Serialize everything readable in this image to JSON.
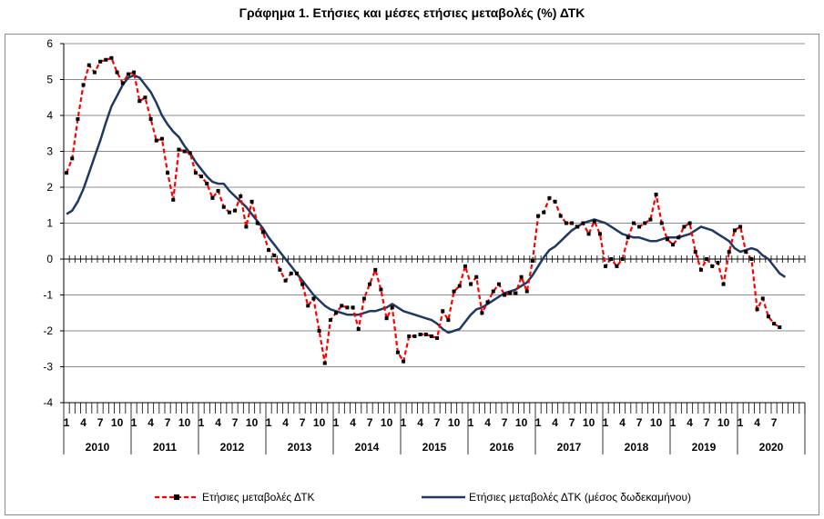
{
  "title": "Γράφημα 1. Ετήσιες και μέσες ετήσιες μεταβολές (%) ΔΤΚ",
  "colors": {
    "annual": "#ff0000",
    "annual_marker": "#000000",
    "average": "#1f3864",
    "grid": "#8c8c8c",
    "axis": "#000000"
  },
  "chart_data": {
    "type": "line",
    "title": "Γράφημα 1. Ετήσιες και μέσες ετήσιες μεταβολές (%) ΔΤΚ",
    "ylim": [
      -4,
      6
    ],
    "yticks": [
      "-4",
      "-3",
      "-2",
      "-1",
      "0",
      "1",
      "2",
      "3",
      "4",
      "5",
      "6"
    ],
    "grid": "horizontal",
    "legend_position": "bottom",
    "x_month_labels": [
      "1",
      "4",
      "7",
      "10"
    ],
    "years": [
      "2010",
      "2011",
      "2012",
      "2013",
      "2014",
      "2015",
      "2016",
      "2017",
      "2018",
      "2019",
      "2020"
    ],
    "x_range": "2010-01 to 2020-08 (monthly)",
    "series": [
      {
        "name": "Ετήσιες μεταβολές ΔΤΚ",
        "style": "dashed-with-markers",
        "values": [
          2.4,
          2.8,
          3.9,
          4.85,
          5.4,
          5.2,
          5.5,
          5.55,
          5.6,
          5.2,
          4.9,
          5.15,
          5.2,
          4.4,
          4.5,
          3.9,
          3.3,
          3.35,
          2.4,
          1.65,
          3.05,
          3.0,
          2.95,
          2.4,
          2.3,
          2.1,
          1.7,
          1.9,
          1.45,
          1.3,
          1.35,
          1.75,
          0.9,
          1.6,
          1.0,
          0.75,
          0.25,
          0.1,
          -0.3,
          -0.6,
          -0.4,
          -0.4,
          -0.7,
          -1.3,
          -1.1,
          -2.0,
          -2.9,
          -1.7,
          -1.5,
          -1.3,
          -1.35,
          -1.35,
          -1.95,
          -1.1,
          -0.7,
          -0.3,
          -0.85,
          -1.65,
          -1.35,
          -2.6,
          -2.85,
          -2.15,
          -2.15,
          -2.1,
          -2.1,
          -2.15,
          -2.2,
          -1.45,
          -1.7,
          -0.9,
          -0.75,
          -0.2,
          -0.7,
          -0.5,
          -1.5,
          -1.2,
          -0.9,
          -0.7,
          -1.0,
          -0.95,
          -0.95,
          -0.5,
          -0.9,
          -0.05,
          1.2,
          1.3,
          1.7,
          1.6,
          1.2,
          1.0,
          1.0,
          0.9,
          1.0,
          0.7,
          1.05,
          0.7,
          -0.2,
          0.0,
          -0.2,
          0.0,
          0.6,
          1.0,
          0.9,
          1.0,
          1.1,
          1.8,
          1.0,
          0.55,
          0.4,
          0.6,
          0.9,
          1.0,
          0.2,
          -0.3,
          0.0,
          -0.2,
          -0.1,
          -0.7,
          0.2,
          0.8,
          0.9,
          0.2,
          0.0,
          -1.4,
          -1.1,
          -1.6,
          -1.8,
          -1.9
        ]
      },
      {
        "name": "Ετήσιες μεταβολές ΔΤΚ (μέσος δωδεκαμήνου)",
        "style": "solid",
        "values": [
          1.25,
          1.35,
          1.6,
          1.95,
          2.4,
          2.85,
          3.3,
          3.8,
          4.25,
          4.55,
          4.85,
          5.05,
          5.12,
          5.05,
          4.85,
          4.65,
          4.35,
          4.0,
          3.75,
          3.55,
          3.4,
          3.15,
          2.95,
          2.7,
          2.5,
          2.3,
          2.15,
          2.1,
          2.1,
          1.9,
          1.75,
          1.6,
          1.45,
          1.25,
          1.05,
          0.85,
          0.6,
          0.4,
          0.2,
          0.0,
          -0.2,
          -0.4,
          -0.6,
          -0.8,
          -1.0,
          -1.15,
          -1.3,
          -1.4,
          -1.45,
          -1.5,
          -1.55,
          -1.55,
          -1.55,
          -1.5,
          -1.45,
          -1.45,
          -1.4,
          -1.35,
          -1.25,
          -1.35,
          -1.45,
          -1.5,
          -1.55,
          -1.6,
          -1.65,
          -1.7,
          -1.8,
          -1.95,
          -2.05,
          -2.0,
          -1.95,
          -1.75,
          -1.55,
          -1.4,
          -1.35,
          -1.25,
          -1.15,
          -1.05,
          -0.95,
          -0.9,
          -0.85,
          -0.75,
          -0.65,
          -0.45,
          -0.2,
          0.05,
          0.25,
          0.35,
          0.5,
          0.65,
          0.8,
          0.9,
          1.0,
          1.05,
          1.1,
          1.05,
          1.0,
          0.9,
          0.8,
          0.7,
          0.65,
          0.6,
          0.6,
          0.55,
          0.5,
          0.5,
          0.55,
          0.6,
          0.6,
          0.6,
          0.65,
          0.7,
          0.8,
          0.9,
          0.85,
          0.8,
          0.7,
          0.6,
          0.5,
          0.3,
          0.2,
          0.25,
          0.3,
          0.25,
          0.1,
          0.0,
          -0.2,
          -0.4,
          -0.5
        ]
      }
    ]
  },
  "legend": {
    "annual": "Ετήσιες μεταβολές ΔΤΚ",
    "average": "Ετήσιες μεταβολές ΔΤΚ (μέσος δωδεκαμήνου)"
  }
}
